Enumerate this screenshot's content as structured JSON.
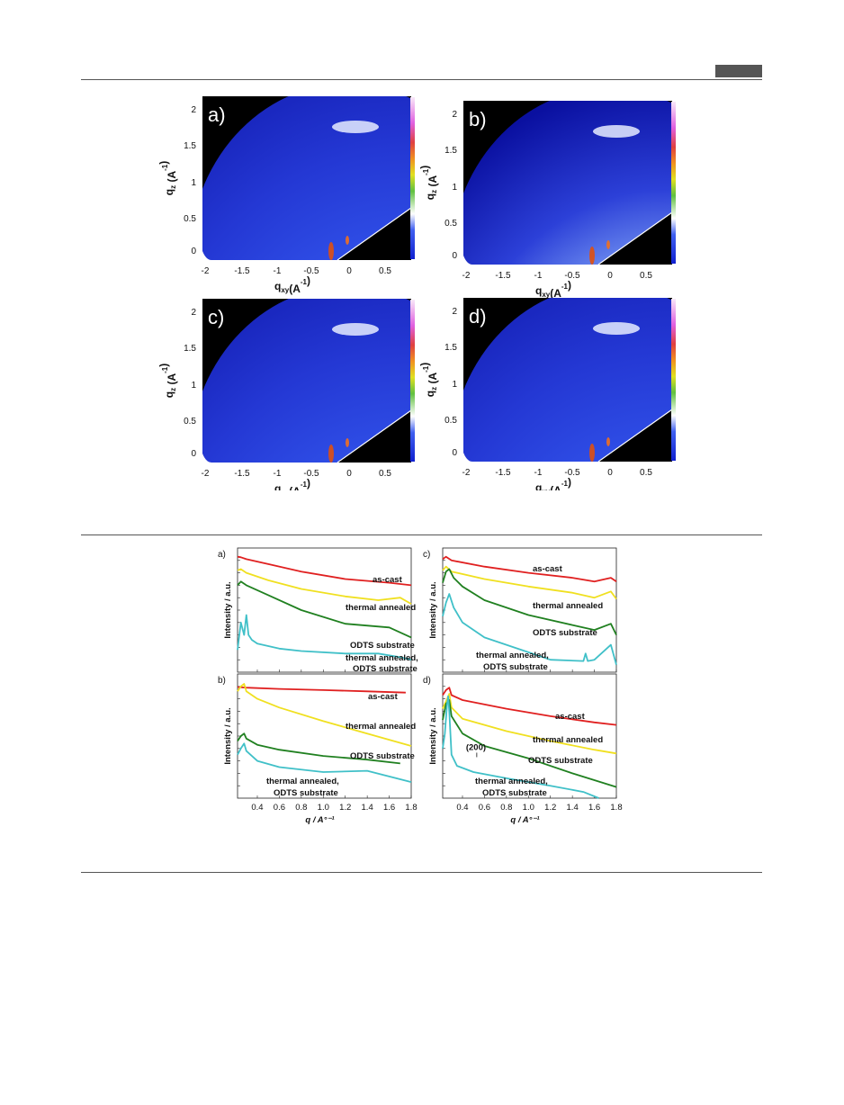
{
  "header": {
    "badge_color": "#555555"
  },
  "figure1": {
    "panels": [
      {
        "label": "a)",
        "xlabel": "q",
        "xlabel_sub": "xy",
        "xlabel_unit": "(A",
        "xlabel_sup": "-1",
        "xlabel_end": ")",
        "ylabel": "q",
        "ylabel_sub": "z",
        "ylabel_unit": " (A",
        "ylabel_sup": "-1",
        "ylabel_end": ")",
        "xticks": [
          "-2",
          "-1.5",
          "-1",
          "-0.5",
          "0",
          "0.5"
        ],
        "yticks": [
          "0",
          "0.5",
          "1",
          "1.5",
          "2"
        ]
      },
      {
        "label": "b)",
        "xlabel": "q",
        "xlabel_sub": "xy",
        "xlabel_unit": "(A",
        "xlabel_sup": "-1",
        "xlabel_end": ")",
        "ylabel": "q",
        "ylabel_sub": "z",
        "ylabel_unit": " (A",
        "ylabel_sup": "-1",
        "ylabel_end": ")",
        "xticks": [
          "-2",
          "-1.5",
          "-1",
          "-0.5",
          "0",
          "0.5"
        ],
        "yticks": [
          "0",
          "0.5",
          "1",
          "1.5",
          "2"
        ]
      },
      {
        "label": "c)",
        "xlabel": "q",
        "xlabel_sub": "xy",
        "xlabel_unit": "(A",
        "xlabel_sup": "-1",
        "xlabel_end": ")",
        "ylabel": "q",
        "ylabel_sub": "z",
        "ylabel_unit": " (A",
        "ylabel_sup": "-1",
        "ylabel_end": ")",
        "xticks": [
          "-2",
          "-1.5",
          "-1",
          "-0.5",
          "0",
          "0.5"
        ],
        "yticks": [
          "0",
          "0.5",
          "1",
          "1.5",
          "2"
        ]
      },
      {
        "label": "d)",
        "xlabel": "q",
        "xlabel_sub": "xy",
        "xlabel_unit": "(A",
        "xlabel_sup": "-1",
        "xlabel_end": ")",
        "ylabel": "q",
        "ylabel_sub": "z",
        "ylabel_unit": " (A",
        "ylabel_sup": "-1",
        "ylabel_end": ")",
        "xticks": [
          "-2",
          "-1.5",
          "-1",
          "-0.5",
          "0",
          "0.5"
        ],
        "yticks": [
          "0",
          "0.5",
          "1",
          "1.5",
          "2"
        ]
      }
    ]
  },
  "chart_data": [
    {
      "panel": "a)",
      "type": "line",
      "xlabel": "q / A°⁻¹",
      "ylabel": "Intensity / a.u.",
      "xlim": [
        0.22,
        1.8
      ],
      "ylim": [
        0,
        10
      ],
      "xticks": [],
      "series": [
        {
          "name": "as-cast",
          "color": "#e02020",
          "x": [
            0.22,
            0.25,
            0.3,
            0.5,
            0.8,
            1.2,
            1.6,
            1.8
          ],
          "y": [
            9.3,
            9.25,
            9.1,
            8.7,
            8.1,
            7.5,
            7.2,
            7.0
          ]
        },
        {
          "name": "thermal annealed",
          "color": "#f0e020",
          "x": [
            0.22,
            0.25,
            0.3,
            0.5,
            0.8,
            1.2,
            1.5,
            1.7,
            1.8
          ],
          "y": [
            8.2,
            8.3,
            8.0,
            7.4,
            6.7,
            6.1,
            5.8,
            6.0,
            5.5
          ]
        },
        {
          "name": "ODTS substrate",
          "color": "#208020",
          "x": [
            0.22,
            0.25,
            0.3,
            0.5,
            0.8,
            1.2,
            1.6,
            1.8
          ],
          "y": [
            7.0,
            7.3,
            7.0,
            6.2,
            5.0,
            3.9,
            3.6,
            2.8
          ]
        },
        {
          "name": "thermal annealed,\nODTS substrate",
          "color": "#40c0c8",
          "x": [
            0.22,
            0.25,
            0.28,
            0.3,
            0.32,
            0.35,
            0.4,
            0.6,
            0.8,
            1.2,
            1.5,
            1.7,
            1.8
          ],
          "y": [
            1.8,
            4.0,
            3.0,
            4.6,
            3.0,
            2.6,
            2.3,
            1.9,
            1.7,
            1.5,
            1.5,
            1.2,
            1.0
          ]
        }
      ]
    },
    {
      "panel": "b)",
      "type": "line",
      "xlabel": "q / A°⁻¹",
      "ylabel": "Intensity / a.u.",
      "xlim": [
        0.22,
        1.8
      ],
      "ylim": [
        0,
        10
      ],
      "xticks": [
        "0.4",
        "0.6",
        "0.8",
        "1.0",
        "1.2",
        "1.4",
        "1.6",
        "1.8"
      ],
      "series": [
        {
          "name": "as-cast",
          "color": "#e02020",
          "x": [
            0.22,
            0.3,
            0.6,
            1.0,
            1.4,
            1.75
          ],
          "y": [
            8.95,
            8.9,
            8.8,
            8.7,
            8.6,
            8.5
          ]
        },
        {
          "name": "thermal annealed",
          "color": "#f0e020",
          "x": [
            0.22,
            0.25,
            0.28,
            0.3,
            0.4,
            0.6,
            1.0,
            1.4,
            1.8
          ],
          "y": [
            8.6,
            9.0,
            9.2,
            8.6,
            8.0,
            7.3,
            6.2,
            5.2,
            4.2
          ]
        },
        {
          "name": "ODTS substrate",
          "color": "#208020",
          "x": [
            0.22,
            0.25,
            0.28,
            0.3,
            0.4,
            0.6,
            1.0,
            1.4,
            1.7
          ],
          "y": [
            4.6,
            5.0,
            5.2,
            4.8,
            4.3,
            3.9,
            3.4,
            3.1,
            2.8
          ]
        },
        {
          "name": "thermal annealed,\nODTS substrate",
          "color": "#40c0c8",
          "x": [
            0.22,
            0.25,
            0.28,
            0.3,
            0.4,
            0.6,
            1.0,
            1.4,
            1.8
          ],
          "y": [
            3.5,
            4.0,
            4.4,
            3.8,
            3.0,
            2.5,
            2.1,
            2.2,
            1.3
          ]
        }
      ]
    },
    {
      "panel": "c)",
      "type": "line",
      "xlabel": "q / A°⁻¹",
      "ylabel": "Intensity / a.u.",
      "xlim": [
        0.22,
        1.8
      ],
      "ylim": [
        0,
        10
      ],
      "xticks": [],
      "series": [
        {
          "name": "as-cast",
          "color": "#e02020",
          "x": [
            0.22,
            0.25,
            0.3,
            0.6,
            1.0,
            1.4,
            1.6,
            1.75,
            1.8
          ],
          "y": [
            9.1,
            9.3,
            9.0,
            8.5,
            8.0,
            7.6,
            7.3,
            7.6,
            7.3
          ]
        },
        {
          "name": "thermal annealed",
          "color": "#f0e020",
          "x": [
            0.22,
            0.25,
            0.3,
            0.6,
            1.0,
            1.4,
            1.6,
            1.75,
            1.8
          ],
          "y": [
            8.2,
            8.5,
            8.1,
            7.5,
            6.9,
            6.4,
            6.0,
            6.5,
            5.9
          ]
        },
        {
          "name": "ODTS substrate",
          "color": "#208020",
          "x": [
            0.22,
            0.25,
            0.28,
            0.32,
            0.4,
            0.6,
            1.0,
            1.4,
            1.6,
            1.75,
            1.8
          ],
          "y": [
            7.2,
            8.1,
            8.3,
            7.6,
            6.9,
            5.8,
            4.6,
            3.8,
            3.4,
            3.9,
            3.0
          ]
        },
        {
          "name": "thermal annealed,\nODTS substrate",
          "color": "#40c0c8",
          "x": [
            0.22,
            0.25,
            0.28,
            0.32,
            0.4,
            0.6,
            1.0,
            1.2,
            1.5,
            1.52,
            1.54,
            1.6,
            1.75,
            1.8
          ],
          "y": [
            4.5,
            5.6,
            6.3,
            5.2,
            4.0,
            2.8,
            1.6,
            1.0,
            0.9,
            1.5,
            0.9,
            1.0,
            2.2,
            0.6
          ]
        }
      ]
    },
    {
      "panel": "d)",
      "type": "line",
      "xlabel": "q / A°⁻¹",
      "ylabel": "Intensity / a.u.",
      "xlim": [
        0.22,
        1.8
      ],
      "ylim": [
        0,
        10
      ],
      "xticks": [
        "0.4",
        "0.6",
        "0.8",
        "1.0",
        "1.2",
        "1.4",
        "1.6",
        "1.8"
      ],
      "annotations": [
        {
          "text": "(200)",
          "x": 0.53,
          "y": 3.3
        }
      ],
      "series": [
        {
          "name": "as-cast",
          "color": "#e02020",
          "x": [
            0.22,
            0.25,
            0.28,
            0.3,
            0.4,
            0.8,
            1.2,
            1.6,
            1.8
          ],
          "y": [
            8.3,
            8.7,
            8.9,
            8.3,
            7.9,
            7.2,
            6.6,
            6.1,
            5.9
          ]
        },
        {
          "name": "thermal annealed",
          "color": "#f0e020",
          "x": [
            0.22,
            0.25,
            0.28,
            0.3,
            0.4,
            0.8,
            1.2,
            1.6,
            1.8
          ],
          "y": [
            7.2,
            7.8,
            8.4,
            7.3,
            6.4,
            5.4,
            4.6,
            3.9,
            3.6
          ]
        },
        {
          "name": "ODTS substrate",
          "color": "#208020",
          "x": [
            0.22,
            0.25,
            0.28,
            0.3,
            0.4,
            0.6,
            1.0,
            1.4,
            1.8
          ],
          "y": [
            6.3,
            7.6,
            7.9,
            6.6,
            5.2,
            4.2,
            3.2,
            2.0,
            0.9
          ]
        },
        {
          "name": "thermal annealed,\nODTS substrate",
          "color": "#40c0c8",
          "x": [
            0.22,
            0.24,
            0.26,
            0.27,
            0.28,
            0.3,
            0.35,
            0.5,
            0.8,
            1.2,
            1.5,
            1.64
          ],
          "y": [
            4.0,
            5.2,
            7.6,
            8.2,
            7.0,
            3.5,
            2.6,
            2.1,
            1.6,
            1.0,
            0.5,
            0.0
          ]
        }
      ]
    }
  ]
}
